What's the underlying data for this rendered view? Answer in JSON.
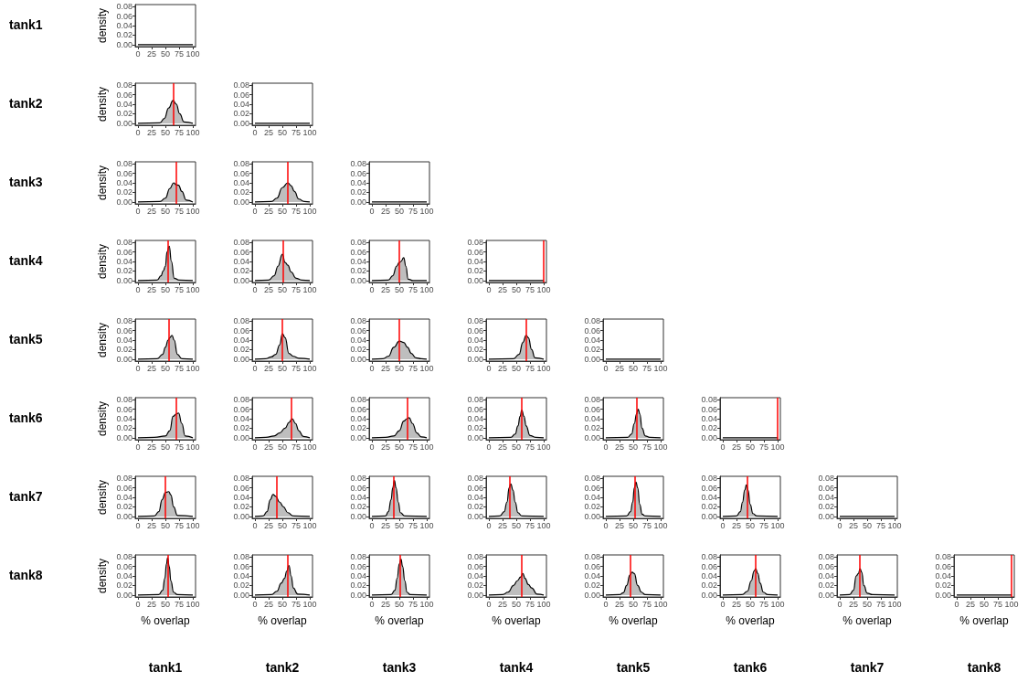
{
  "chart_data": [
    {
      "type": "line",
      "x": [
        0,
        100
      ],
      "values": [
        0,
        0
      ],
      "color": "#000000",
      "xlim": [
        -5,
        105
      ],
      "xticks": [
        0,
        25,
        50,
        75,
        100
      ],
      "ylim": [
        -0.004,
        0.084
      ],
      "yticks": [
        {
          "value": 0,
          "label": "0.00"
        },
        {
          "value": 0.02,
          "label": "0.02"
        },
        {
          "value": 0.04,
          "label": "0.04"
        },
        {
          "value": 0.06,
          "label": "0.06"
        },
        {
          "value": 0.08,
          "label": "0.08"
        }
      ],
      "grid": false,
      "ylabel": "density",
      "title": "tank1"
    },
    {
      "type": "area",
      "x": [
        0,
        40,
        48,
        56,
        64,
        70,
        76,
        84,
        100
      ],
      "values": [
        0,
        0.001,
        0.01,
        0.032,
        0.048,
        0.04,
        0.02,
        0.003,
        0
      ],
      "color": "#bebebe",
      "xlim": [
        -5,
        105
      ],
      "xticks": [
        0,
        25,
        50,
        75,
        100
      ],
      "ylim": [
        -0.004,
        0.084
      ],
      "yticks": [
        {
          "value": 0,
          "label": "0.00"
        },
        {
          "value": 0.02,
          "label": "0.02"
        },
        {
          "value": 0.04,
          "label": "0.04"
        },
        {
          "value": 0.06,
          "label": "0.06"
        },
        {
          "value": 0.08,
          "label": "0.08"
        }
      ],
      "grid": false,
      "ref_lines": [
        {
          "axis": "x",
          "value": 64,
          "color": "#ff0000"
        }
      ],
      "ylabel": "density",
      "title": "tank2"
    },
    {
      "type": "line",
      "x": [
        0,
        100
      ],
      "values": [
        0,
        0
      ],
      "color": "#000000",
      "xlim": [
        -5,
        105
      ],
      "xticks": [
        0,
        25,
        50,
        75,
        100
      ],
      "ylim": [
        -0.004,
        0.084
      ],
      "yticks": [
        {
          "value": 0,
          "label": "0.00"
        },
        {
          "value": 0.02,
          "label": "0.02"
        },
        {
          "value": 0.04,
          "label": "0.04"
        },
        {
          "value": 0.06,
          "label": "0.06"
        },
        {
          "value": 0.08,
          "label": "0.08"
        }
      ],
      "grid": false
    },
    {
      "type": "area",
      "x": [
        0,
        40,
        50,
        58,
        65,
        70,
        74,
        80,
        88,
        100
      ],
      "values": [
        0,
        0.001,
        0.008,
        0.028,
        0.04,
        0.036,
        0.035,
        0.022,
        0.004,
        0
      ],
      "color": "#bebebe",
      "xlim": [
        -5,
        105
      ],
      "xticks": [
        0,
        25,
        50,
        75,
        100
      ],
      "ylim": [
        -0.004,
        0.084
      ],
      "yticks": [
        {
          "value": 0,
          "label": "0.00"
        },
        {
          "value": 0.02,
          "label": "0.02"
        },
        {
          "value": 0.04,
          "label": "0.04"
        },
        {
          "value": 0.06,
          "label": "0.06"
        },
        {
          "value": 0.08,
          "label": "0.08"
        }
      ],
      "grid": false,
      "ref_lines": [
        {
          "axis": "x",
          "value": 70,
          "color": "#ff0000"
        }
      ],
      "ylabel": "density",
      "title": "tank3"
    },
    {
      "type": "area",
      "x": [
        0,
        30,
        40,
        50,
        60,
        66,
        72,
        80,
        90,
        100
      ],
      "values": [
        0,
        0.001,
        0.008,
        0.03,
        0.04,
        0.034,
        0.022,
        0.006,
        0.001,
        0
      ],
      "color": "#bebebe",
      "xlim": [
        -5,
        105
      ],
      "xticks": [
        0,
        25,
        50,
        75,
        100
      ],
      "ylim": [
        -0.004,
        0.084
      ],
      "yticks": [
        {
          "value": 0,
          "label": "0.00"
        },
        {
          "value": 0.02,
          "label": "0.02"
        },
        {
          "value": 0.04,
          "label": "0.04"
        },
        {
          "value": 0.06,
          "label": "0.06"
        },
        {
          "value": 0.08,
          "label": "0.08"
        }
      ],
      "grid": false,
      "ref_lines": [
        {
          "axis": "x",
          "value": 60,
          "color": "#ff0000"
        }
      ]
    },
    {
      "type": "line",
      "x": [
        0,
        100
      ],
      "values": [
        0,
        0
      ],
      "color": "#000000",
      "xlim": [
        -5,
        105
      ],
      "xticks": [
        0,
        25,
        50,
        75,
        100
      ],
      "ylim": [
        -0.004,
        0.084
      ],
      "yticks": [
        {
          "value": 0,
          "label": "0.00"
        },
        {
          "value": 0.02,
          "label": "0.02"
        },
        {
          "value": 0.04,
          "label": "0.04"
        },
        {
          "value": 0.06,
          "label": "0.06"
        },
        {
          "value": 0.08,
          "label": "0.08"
        }
      ],
      "grid": false
    },
    {
      "type": "area",
      "x": [
        0,
        35,
        42,
        46,
        50,
        53,
        57,
        61,
        66,
        75,
        100
      ],
      "values": [
        0,
        0.001,
        0.01,
        0.02,
        0.03,
        0.06,
        0.072,
        0.04,
        0.005,
        0.001,
        0
      ],
      "color": "#bebebe",
      "xlim": [
        -5,
        105
      ],
      "xticks": [
        0,
        25,
        50,
        75,
        100
      ],
      "ylim": [
        -0.004,
        0.084
      ],
      "yticks": [
        {
          "value": 0,
          "label": "0.00"
        },
        {
          "value": 0.02,
          "label": "0.02"
        },
        {
          "value": 0.04,
          "label": "0.04"
        },
        {
          "value": 0.06,
          "label": "0.06"
        },
        {
          "value": 0.08,
          "label": "0.08"
        }
      ],
      "grid": false,
      "ref_lines": [
        {
          "axis": "x",
          "value": 55,
          "color": "#ff0000"
        }
      ],
      "ylabel": "density",
      "title": "tank4"
    },
    {
      "type": "area",
      "x": [
        0,
        25,
        35,
        42,
        50,
        55,
        60,
        66,
        75,
        85,
        100
      ],
      "values": [
        0,
        0.001,
        0.01,
        0.03,
        0.055,
        0.038,
        0.032,
        0.018,
        0.005,
        0.001,
        0
      ],
      "color": "#bebebe",
      "xlim": [
        -5,
        105
      ],
      "xticks": [
        0,
        25,
        50,
        75,
        100
      ],
      "ylim": [
        -0.004,
        0.084
      ],
      "yticks": [
        {
          "value": 0,
          "label": "0.00"
        },
        {
          "value": 0.02,
          "label": "0.02"
        },
        {
          "value": 0.04,
          "label": "0.04"
        },
        {
          "value": 0.06,
          "label": "0.06"
        },
        {
          "value": 0.08,
          "label": "0.08"
        }
      ],
      "grid": false,
      "ref_lines": [
        {
          "axis": "x",
          "value": 52,
          "color": "#ff0000"
        }
      ]
    },
    {
      "type": "area",
      "x": [
        0,
        30,
        38,
        45,
        50,
        53,
        58,
        62,
        66,
        75,
        100
      ],
      "values": [
        0,
        0.001,
        0.01,
        0.03,
        0.038,
        0.04,
        0.048,
        0.03,
        0.003,
        0,
        0
      ],
      "color": "#bebebe",
      "xlim": [
        -5,
        105
      ],
      "xticks": [
        0,
        25,
        50,
        75,
        100
      ],
      "ylim": [
        -0.004,
        0.084
      ],
      "yticks": [
        {
          "value": 0,
          "label": "0.00"
        },
        {
          "value": 0.02,
          "label": "0.02"
        },
        {
          "value": 0.04,
          "label": "0.04"
        },
        {
          "value": 0.06,
          "label": "0.06"
        },
        {
          "value": 0.08,
          "label": "0.08"
        }
      ],
      "grid": false,
      "ref_lines": [
        {
          "axis": "x",
          "value": 50,
          "color": "#ff0000"
        }
      ]
    },
    {
      "type": "line",
      "x": [
        0,
        100
      ],
      "values": [
        0,
        0
      ],
      "color": "#000000",
      "xlim": [
        -5,
        105
      ],
      "xticks": [
        0,
        25,
        50,
        75,
        100
      ],
      "ylim": [
        -0.004,
        0.084
      ],
      "yticks": [
        {
          "value": 0,
          "label": "0.00"
        },
        {
          "value": 0.02,
          "label": "0.02"
        },
        {
          "value": 0.04,
          "label": "0.04"
        },
        {
          "value": 0.06,
          "label": "0.06"
        },
        {
          "value": 0.08,
          "label": "0.08"
        }
      ],
      "grid": false,
      "ref_lines": [
        {
          "axis": "x",
          "value": 99,
          "color": "#ff0000"
        }
      ]
    },
    {
      "type": "area",
      "x": [
        0,
        35,
        45,
        50,
        55,
        58,
        62,
        66,
        72,
        80,
        100
      ],
      "values": [
        0,
        0.001,
        0.01,
        0.025,
        0.04,
        0.045,
        0.05,
        0.04,
        0.01,
        0.001,
        0
      ],
      "color": "#bebebe",
      "xlim": [
        -5,
        105
      ],
      "xticks": [
        0,
        25,
        50,
        75,
        100
      ],
      "ylim": [
        -0.004,
        0.084
      ],
      "yticks": [
        {
          "value": 0,
          "label": "0.00"
        },
        {
          "value": 0.02,
          "label": "0.02"
        },
        {
          "value": 0.04,
          "label": "0.04"
        },
        {
          "value": 0.06,
          "label": "0.06"
        },
        {
          "value": 0.08,
          "label": "0.08"
        }
      ],
      "grid": false,
      "ref_lines": [
        {
          "axis": "x",
          "value": 57,
          "color": "#ff0000"
        }
      ],
      "ylabel": "density",
      "title": "tank5"
    },
    {
      "type": "area",
      "x": [
        0,
        20,
        30,
        38,
        45,
        50,
        55,
        62,
        70,
        80,
        100
      ],
      "values": [
        0,
        0.001,
        0.005,
        0.01,
        0.03,
        0.053,
        0.045,
        0.012,
        0.006,
        0.002,
        0
      ],
      "color": "#bebebe",
      "xlim": [
        -5,
        105
      ],
      "xticks": [
        0,
        25,
        50,
        75,
        100
      ],
      "ylim": [
        -0.004,
        0.084
      ],
      "yticks": [
        {
          "value": 0,
          "label": "0.00"
        },
        {
          "value": 0.02,
          "label": "0.02"
        },
        {
          "value": 0.04,
          "label": "0.04"
        },
        {
          "value": 0.06,
          "label": "0.06"
        },
        {
          "value": 0.08,
          "label": "0.08"
        }
      ],
      "grid": false,
      "ref_lines": [
        {
          "axis": "x",
          "value": 50,
          "color": "#ff0000"
        }
      ]
    },
    {
      "type": "area",
      "x": [
        0,
        20,
        30,
        40,
        50,
        58,
        65,
        72,
        80,
        90,
        100
      ],
      "values": [
        0,
        0.001,
        0.006,
        0.025,
        0.038,
        0.035,
        0.025,
        0.012,
        0.003,
        0.001,
        0
      ],
      "color": "#bebebe",
      "xlim": [
        -5,
        105
      ],
      "xticks": [
        0,
        25,
        50,
        75,
        100
      ],
      "ylim": [
        -0.004,
        0.084
      ],
      "yticks": [
        {
          "value": 0,
          "label": "0.00"
        },
        {
          "value": 0.02,
          "label": "0.02"
        },
        {
          "value": 0.04,
          "label": "0.04"
        },
        {
          "value": 0.06,
          "label": "0.06"
        },
        {
          "value": 0.08,
          "label": "0.08"
        }
      ],
      "grid": false,
      "ref_lines": [
        {
          "axis": "x",
          "value": 50,
          "color": "#ff0000"
        }
      ]
    },
    {
      "type": "area",
      "x": [
        0,
        45,
        55,
        62,
        68,
        72,
        78,
        84,
        100
      ],
      "values": [
        0,
        0.001,
        0.01,
        0.035,
        0.05,
        0.045,
        0.02,
        0.003,
        0
      ],
      "color": "#bebebe",
      "xlim": [
        -5,
        105
      ],
      "xticks": [
        0,
        25,
        50,
        75,
        100
      ],
      "ylim": [
        -0.004,
        0.084
      ],
      "yticks": [
        {
          "value": 0,
          "label": "0.00"
        },
        {
          "value": 0.02,
          "label": "0.02"
        },
        {
          "value": 0.04,
          "label": "0.04"
        },
        {
          "value": 0.06,
          "label": "0.06"
        },
        {
          "value": 0.08,
          "label": "0.08"
        }
      ],
      "grid": false,
      "ref_lines": [
        {
          "axis": "x",
          "value": 68,
          "color": "#ff0000"
        }
      ]
    },
    {
      "type": "line",
      "x": [
        0,
        100
      ],
      "values": [
        0,
        0
      ],
      "color": "#000000",
      "xlim": [
        -5,
        105
      ],
      "xticks": [
        0,
        25,
        50,
        75,
        100
      ],
      "ylim": [
        -0.004,
        0.084
      ],
      "yticks": [
        {
          "value": 0,
          "label": "0.00"
        },
        {
          "value": 0.02,
          "label": "0.02"
        },
        {
          "value": 0.04,
          "label": "0.04"
        },
        {
          "value": 0.06,
          "label": "0.06"
        },
        {
          "value": 0.08,
          "label": "0.08"
        }
      ],
      "grid": false
    },
    {
      "type": "area",
      "x": [
        0,
        30,
        50,
        58,
        64,
        70,
        74,
        80,
        86,
        100
      ],
      "values": [
        0,
        0.001,
        0.004,
        0.015,
        0.045,
        0.05,
        0.052,
        0.03,
        0.004,
        0
      ],
      "color": "#bebebe",
      "xlim": [
        -5,
        105
      ],
      "xticks": [
        0,
        25,
        50,
        75,
        100
      ],
      "ylim": [
        -0.004,
        0.084
      ],
      "yticks": [
        {
          "value": 0,
          "label": "0.00"
        },
        {
          "value": 0.02,
          "label": "0.02"
        },
        {
          "value": 0.04,
          "label": "0.04"
        },
        {
          "value": 0.06,
          "label": "0.06"
        },
        {
          "value": 0.08,
          "label": "0.08"
        }
      ],
      "grid": false,
      "ref_lines": [
        {
          "axis": "x",
          "value": 70,
          "color": "#ff0000"
        }
      ],
      "ylabel": "density",
      "title": "tank6"
    },
    {
      "type": "area",
      "x": [
        0,
        20,
        35,
        45,
        55,
        62,
        68,
        74,
        80,
        88,
        100
      ],
      "values": [
        0,
        0.001,
        0.004,
        0.01,
        0.02,
        0.032,
        0.04,
        0.03,
        0.015,
        0.003,
        0
      ],
      "color": "#bebebe",
      "xlim": [
        -5,
        105
      ],
      "xticks": [
        0,
        25,
        50,
        75,
        100
      ],
      "ylim": [
        -0.004,
        0.084
      ],
      "yticks": [
        {
          "value": 0,
          "label": "0.00"
        },
        {
          "value": 0.02,
          "label": "0.02"
        },
        {
          "value": 0.04,
          "label": "0.04"
        },
        {
          "value": 0.06,
          "label": "0.06"
        },
        {
          "value": 0.08,
          "label": "0.08"
        }
      ],
      "grid": false,
      "ref_lines": [
        {
          "axis": "x",
          "value": 66,
          "color": "#ff0000"
        }
      ]
    },
    {
      "type": "area",
      "x": [
        0,
        25,
        40,
        50,
        58,
        64,
        68,
        74,
        82,
        90,
        100
      ],
      "values": [
        0,
        0.001,
        0.004,
        0.015,
        0.035,
        0.04,
        0.042,
        0.03,
        0.01,
        0.002,
        0
      ],
      "color": "#bebebe",
      "xlim": [
        -5,
        105
      ],
      "xticks": [
        0,
        25,
        50,
        75,
        100
      ],
      "ylim": [
        -0.004,
        0.084
      ],
      "yticks": [
        {
          "value": 0,
          "label": "0.00"
        },
        {
          "value": 0.02,
          "label": "0.02"
        },
        {
          "value": 0.04,
          "label": "0.04"
        },
        {
          "value": 0.06,
          "label": "0.06"
        },
        {
          "value": 0.08,
          "label": "0.08"
        }
      ],
      "grid": false,
      "ref_lines": [
        {
          "axis": "x",
          "value": 64,
          "color": "#ff0000"
        }
      ]
    },
    {
      "type": "area",
      "x": [
        0,
        40,
        48,
        53,
        57,
        60,
        64,
        68,
        75,
        85,
        100
      ],
      "values": [
        0,
        0.001,
        0.008,
        0.025,
        0.045,
        0.058,
        0.045,
        0.025,
        0.005,
        0.001,
        0
      ],
      "color": "#bebebe",
      "xlim": [
        -5,
        105
      ],
      "xticks": [
        0,
        25,
        50,
        75,
        100
      ],
      "ylim": [
        -0.004,
        0.084
      ],
      "yticks": [
        {
          "value": 0,
          "label": "0.00"
        },
        {
          "value": 0.02,
          "label": "0.02"
        },
        {
          "value": 0.04,
          "label": "0.04"
        },
        {
          "value": 0.06,
          "label": "0.06"
        },
        {
          "value": 0.08,
          "label": "0.08"
        }
      ],
      "grid": false,
      "ref_lines": [
        {
          "axis": "x",
          "value": 60,
          "color": "#ff0000"
        }
      ]
    },
    {
      "type": "area",
      "x": [
        0,
        40,
        47,
        52,
        56,
        59,
        62,
        66,
        72,
        80,
        100
      ],
      "values": [
        0,
        0.001,
        0.008,
        0.03,
        0.05,
        0.06,
        0.05,
        0.02,
        0.004,
        0.001,
        0
      ],
      "color": "#bebebe",
      "xlim": [
        -5,
        105
      ],
      "xticks": [
        0,
        25,
        50,
        75,
        100
      ],
      "ylim": [
        -0.004,
        0.084
      ],
      "yticks": [
        {
          "value": 0,
          "label": "0.00"
        },
        {
          "value": 0.02,
          "label": "0.02"
        },
        {
          "value": 0.04,
          "label": "0.04"
        },
        {
          "value": 0.06,
          "label": "0.06"
        },
        {
          "value": 0.08,
          "label": "0.08"
        }
      ],
      "grid": false,
      "ref_lines": [
        {
          "axis": "x",
          "value": 57,
          "color": "#ff0000"
        }
      ]
    },
    {
      "type": "line",
      "x": [
        0,
        100
      ],
      "values": [
        0,
        0
      ],
      "color": "#000000",
      "xlim": [
        -5,
        105
      ],
      "xticks": [
        0,
        25,
        50,
        75,
        100
      ],
      "ylim": [
        -0.004,
        0.084
      ],
      "yticks": [
        {
          "value": 0,
          "label": "0.00"
        },
        {
          "value": 0.02,
          "label": "0.02"
        },
        {
          "value": 0.04,
          "label": "0.04"
        },
        {
          "value": 0.06,
          "label": "0.06"
        },
        {
          "value": 0.08,
          "label": "0.08"
        }
      ],
      "grid": false,
      "ref_lines": [
        {
          "axis": "x",
          "value": 99,
          "color": "#ff0000"
        }
      ]
    },
    {
      "type": "area",
      "x": [
        0,
        30,
        38,
        44,
        50,
        56,
        60,
        65,
        72,
        100
      ],
      "values": [
        0,
        0.001,
        0.01,
        0.035,
        0.05,
        0.052,
        0.045,
        0.02,
        0.002,
        0
      ],
      "color": "#bebebe",
      "xlim": [
        -5,
        105
      ],
      "xticks": [
        0,
        25,
        50,
        75,
        100
      ],
      "ylim": [
        -0.004,
        0.084
      ],
      "yticks": [
        {
          "value": 0,
          "label": "0.00"
        },
        {
          "value": 0.02,
          "label": "0.02"
        },
        {
          "value": 0.04,
          "label": "0.04"
        },
        {
          "value": 0.06,
          "label": "0.06"
        },
        {
          "value": 0.08,
          "label": "0.08"
        }
      ],
      "grid": false,
      "ref_lines": [
        {
          "axis": "x",
          "value": 50,
          "color": "#ff0000"
        }
      ],
      "ylabel": "density",
      "title": "tank7"
    },
    {
      "type": "area",
      "x": [
        0,
        15,
        22,
        28,
        33,
        38,
        45,
        52,
        60,
        70,
        100
      ],
      "values": [
        0,
        0.001,
        0.01,
        0.035,
        0.046,
        0.042,
        0.03,
        0.02,
        0.008,
        0.001,
        0
      ],
      "color": "#bebebe",
      "xlim": [
        -5,
        105
      ],
      "xticks": [
        0,
        25,
        50,
        75,
        100
      ],
      "ylim": [
        -0.004,
        0.084
      ],
      "yticks": [
        {
          "value": 0,
          "label": "0.00"
        },
        {
          "value": 0.02,
          "label": "0.02"
        },
        {
          "value": 0.04,
          "label": "0.04"
        },
        {
          "value": 0.06,
          "label": "0.06"
        },
        {
          "value": 0.08,
          "label": "0.08"
        }
      ],
      "grid": false,
      "ref_lines": [
        {
          "axis": "x",
          "value": 40,
          "color": "#ff0000"
        }
      ]
    },
    {
      "type": "area",
      "x": [
        0,
        25,
        30,
        35,
        38,
        41,
        44,
        48,
        52,
        60,
        100
      ],
      "values": [
        0,
        0.001,
        0.01,
        0.035,
        0.06,
        0.075,
        0.06,
        0.03,
        0.008,
        0.001,
        0
      ],
      "color": "#bebebe",
      "xlim": [
        -5,
        105
      ],
      "xticks": [
        0,
        25,
        50,
        75,
        100
      ],
      "ylim": [
        -0.004,
        0.084
      ],
      "yticks": [
        {
          "value": 0,
          "label": "0.00"
        },
        {
          "value": 0.02,
          "label": "0.02"
        },
        {
          "value": 0.04,
          "label": "0.04"
        },
        {
          "value": 0.06,
          "label": "0.06"
        },
        {
          "value": 0.08,
          "label": "0.08"
        }
      ],
      "grid": false,
      "ref_lines": [
        {
          "axis": "x",
          "value": 40,
          "color": "#ff0000"
        }
      ]
    },
    {
      "type": "area",
      "x": [
        0,
        20,
        28,
        33,
        37,
        40,
        44,
        48,
        53,
        60,
        100
      ],
      "values": [
        0,
        0.001,
        0.01,
        0.03,
        0.06,
        0.068,
        0.055,
        0.03,
        0.008,
        0.001,
        0
      ],
      "color": "#bebebe",
      "xlim": [
        -5,
        105
      ],
      "xticks": [
        0,
        25,
        50,
        75,
        100
      ],
      "ylim": [
        -0.004,
        0.084
      ],
      "yticks": [
        {
          "value": 0,
          "label": "0.00"
        },
        {
          "value": 0.02,
          "label": "0.02"
        },
        {
          "value": 0.04,
          "label": "0.04"
        },
        {
          "value": 0.06,
          "label": "0.06"
        },
        {
          "value": 0.08,
          "label": "0.08"
        }
      ],
      "grid": false,
      "ref_lines": [
        {
          "axis": "x",
          "value": 38,
          "color": "#ff0000"
        }
      ]
    },
    {
      "type": "area",
      "x": [
        0,
        38,
        45,
        49,
        52,
        55,
        58,
        62,
        66,
        72,
        100
      ],
      "values": [
        0,
        0.001,
        0.01,
        0.03,
        0.06,
        0.072,
        0.06,
        0.025,
        0.005,
        0.001,
        0
      ],
      "color": "#bebebe",
      "xlim": [
        -5,
        105
      ],
      "xticks": [
        0,
        25,
        50,
        75,
        100
      ],
      "ylim": [
        -0.004,
        0.084
      ],
      "yticks": [
        {
          "value": 0,
          "label": "0.00"
        },
        {
          "value": 0.02,
          "label": "0.02"
        },
        {
          "value": 0.04,
          "label": "0.04"
        },
        {
          "value": 0.06,
          "label": "0.06"
        },
        {
          "value": 0.08,
          "label": "0.08"
        }
      ],
      "grid": false,
      "ref_lines": [
        {
          "axis": "x",
          "value": 53,
          "color": "#ff0000"
        }
      ]
    },
    {
      "type": "area",
      "x": [
        0,
        25,
        32,
        36,
        40,
        43,
        46,
        50,
        55,
        62,
        100
      ],
      "values": [
        0,
        0.001,
        0.01,
        0.03,
        0.055,
        0.066,
        0.055,
        0.025,
        0.006,
        0.001,
        0
      ],
      "color": "#bebebe",
      "xlim": [
        -5,
        105
      ],
      "xticks": [
        0,
        25,
        50,
        75,
        100
      ],
      "ylim": [
        -0.004,
        0.084
      ],
      "yticks": [
        {
          "value": 0,
          "label": "0.00"
        },
        {
          "value": 0.02,
          "label": "0.02"
        },
        {
          "value": 0.04,
          "label": "0.04"
        },
        {
          "value": 0.06,
          "label": "0.06"
        },
        {
          "value": 0.08,
          "label": "0.08"
        }
      ],
      "grid": false,
      "ref_lines": [
        {
          "axis": "x",
          "value": 45,
          "color": "#ff0000"
        }
      ]
    },
    {
      "type": "line",
      "x": [
        0,
        100
      ],
      "values": [
        0,
        0
      ],
      "color": "#000000",
      "xlim": [
        -5,
        105
      ],
      "xticks": [
        0,
        25,
        50,
        75,
        100
      ],
      "ylim": [
        -0.004,
        0.084
      ],
      "yticks": [
        {
          "value": 0,
          "label": "0.00"
        },
        {
          "value": 0.02,
          "label": "0.02"
        },
        {
          "value": 0.04,
          "label": "0.04"
        },
        {
          "value": 0.06,
          "label": "0.06"
        },
        {
          "value": 0.08,
          "label": "0.08"
        }
      ],
      "grid": false
    },
    {
      "type": "area",
      "x": [
        0,
        38,
        45,
        49,
        52,
        54,
        57,
        60,
        65,
        72,
        100
      ],
      "values": [
        0,
        0.001,
        0.01,
        0.035,
        0.065,
        0.078,
        0.06,
        0.03,
        0.006,
        0.001,
        0
      ],
      "color": "#bebebe",
      "xlim": [
        -5,
        105
      ],
      "xticks": [
        0,
        25,
        50,
        75,
        100
      ],
      "ylim": [
        -0.004,
        0.084
      ],
      "yticks": [
        {
          "value": 0,
          "label": "0.00"
        },
        {
          "value": 0.02,
          "label": "0.02"
        },
        {
          "value": 0.04,
          "label": "0.04"
        },
        {
          "value": 0.06,
          "label": "0.06"
        },
        {
          "value": 0.08,
          "label": "0.08"
        }
      ],
      "grid": false,
      "ref_lines": [
        {
          "axis": "x",
          "value": 54,
          "color": "#ff0000"
        }
      ],
      "ylabel": "density",
      "xlabel": "% overlap",
      "title": "tank8",
      "annotations": [
        "tank1"
      ]
    },
    {
      "type": "area",
      "x": [
        0,
        30,
        40,
        48,
        54,
        58,
        62,
        66,
        70,
        78,
        100
      ],
      "values": [
        0,
        0.001,
        0.008,
        0.025,
        0.035,
        0.05,
        0.062,
        0.04,
        0.015,
        0.002,
        0
      ],
      "color": "#bebebe",
      "xlim": [
        -5,
        105
      ],
      "xticks": [
        0,
        25,
        50,
        75,
        100
      ],
      "ylim": [
        -0.004,
        0.084
      ],
      "yticks": [
        {
          "value": 0,
          "label": "0.00"
        },
        {
          "value": 0.02,
          "label": "0.02"
        },
        {
          "value": 0.04,
          "label": "0.04"
        },
        {
          "value": 0.06,
          "label": "0.06"
        },
        {
          "value": 0.08,
          "label": "0.08"
        }
      ],
      "grid": false,
      "ref_lines": [
        {
          "axis": "x",
          "value": 60,
          "color": "#ff0000"
        }
      ],
      "xlabel": "% overlap",
      "annotations": [
        "tank2"
      ]
    },
    {
      "type": "area",
      "x": [
        0,
        35,
        42,
        46,
        50,
        53,
        56,
        60,
        64,
        70,
        100
      ],
      "values": [
        0,
        0.001,
        0.01,
        0.035,
        0.065,
        0.075,
        0.06,
        0.03,
        0.006,
        0.001,
        0
      ],
      "color": "#bebebe",
      "xlim": [
        -5,
        105
      ],
      "xticks": [
        0,
        25,
        50,
        75,
        100
      ],
      "ylim": [
        -0.004,
        0.084
      ],
      "yticks": [
        {
          "value": 0,
          "label": "0.00"
        },
        {
          "value": 0.02,
          "label": "0.02"
        },
        {
          "value": 0.04,
          "label": "0.04"
        },
        {
          "value": 0.06,
          "label": "0.06"
        },
        {
          "value": 0.08,
          "label": "0.08"
        }
      ],
      "grid": false,
      "ref_lines": [
        {
          "axis": "x",
          "value": 52,
          "color": "#ff0000"
        }
      ],
      "xlabel": "% overlap",
      "annotations": [
        "tank3"
      ]
    },
    {
      "type": "area",
      "x": [
        0,
        25,
        35,
        45,
        52,
        58,
        62,
        66,
        72,
        78,
        88,
        100
      ],
      "values": [
        0,
        0.001,
        0.006,
        0.02,
        0.03,
        0.038,
        0.045,
        0.035,
        0.022,
        0.015,
        0.002,
        0
      ],
      "color": "#bebebe",
      "xlim": [
        -5,
        105
      ],
      "xticks": [
        0,
        25,
        50,
        75,
        100
      ],
      "ylim": [
        -0.004,
        0.084
      ],
      "yticks": [
        {
          "value": 0,
          "label": "0.00"
        },
        {
          "value": 0.02,
          "label": "0.02"
        },
        {
          "value": 0.04,
          "label": "0.04"
        },
        {
          "value": 0.06,
          "label": "0.06"
        },
        {
          "value": 0.08,
          "label": "0.08"
        }
      ],
      "grid": false,
      "ref_lines": [
        {
          "axis": "x",
          "value": 60,
          "color": "#ff0000"
        }
      ],
      "xlabel": "% overlap",
      "annotations": [
        "tank4"
      ]
    },
    {
      "type": "area",
      "x": [
        0,
        25,
        32,
        38,
        44,
        48,
        52,
        58,
        65,
        72,
        100
      ],
      "values": [
        0,
        0.001,
        0.005,
        0.02,
        0.042,
        0.048,
        0.045,
        0.02,
        0.006,
        0.001,
        0
      ],
      "color": "#bebebe",
      "xlim": [
        -5,
        105
      ],
      "xticks": [
        0,
        25,
        50,
        75,
        100
      ],
      "ylim": [
        -0.004,
        0.084
      ],
      "yticks": [
        {
          "value": 0,
          "label": "0.00"
        },
        {
          "value": 0.02,
          "label": "0.02"
        },
        {
          "value": 0.04,
          "label": "0.04"
        },
        {
          "value": 0.06,
          "label": "0.06"
        },
        {
          "value": 0.08,
          "label": "0.08"
        }
      ],
      "grid": false,
      "ref_lines": [
        {
          "axis": "x",
          "value": 45,
          "color": "#ff0000"
        }
      ],
      "xlabel": "% overlap",
      "annotations": [
        "tank5"
      ]
    },
    {
      "type": "area",
      "x": [
        0,
        35,
        45,
        52,
        57,
        60,
        64,
        68,
        74,
        82,
        100
      ],
      "values": [
        0,
        0.001,
        0.008,
        0.03,
        0.05,
        0.055,
        0.045,
        0.025,
        0.006,
        0.001,
        0
      ],
      "color": "#bebebe",
      "xlim": [
        -5,
        105
      ],
      "xticks": [
        0,
        25,
        50,
        75,
        100
      ],
      "ylim": [
        -0.004,
        0.084
      ],
      "yticks": [
        {
          "value": 0,
          "label": "0.00"
        },
        {
          "value": 0.02,
          "label": "0.02"
        },
        {
          "value": 0.04,
          "label": "0.04"
        },
        {
          "value": 0.06,
          "label": "0.06"
        },
        {
          "value": 0.08,
          "label": "0.08"
        }
      ],
      "grid": false,
      "ref_lines": [
        {
          "axis": "x",
          "value": 60,
          "color": "#ff0000"
        }
      ],
      "xlabel": "% overlap",
      "annotations": [
        "tank6"
      ]
    },
    {
      "type": "area",
      "x": [
        0,
        18,
        25,
        30,
        34,
        37,
        40,
        44,
        50,
        60,
        100
      ],
      "values": [
        0,
        0.001,
        0.01,
        0.04,
        0.045,
        0.055,
        0.048,
        0.02,
        0.004,
        0.001,
        0
      ],
      "color": "#bebebe",
      "xlim": [
        -5,
        105
      ],
      "xticks": [
        0,
        25,
        50,
        75,
        100
      ],
      "ylim": [
        -0.004,
        0.084
      ],
      "yticks": [
        {
          "value": 0,
          "label": "0.00"
        },
        {
          "value": 0.02,
          "label": "0.02"
        },
        {
          "value": 0.04,
          "label": "0.04"
        },
        {
          "value": 0.06,
          "label": "0.06"
        },
        {
          "value": 0.08,
          "label": "0.08"
        }
      ],
      "grid": false,
      "ref_lines": [
        {
          "axis": "x",
          "value": 37,
          "color": "#ff0000"
        }
      ],
      "xlabel": "% overlap",
      "annotations": [
        "tank7"
      ]
    },
    {
      "type": "line",
      "x": [
        0,
        100
      ],
      "values": [
        0,
        0
      ],
      "color": "#000000",
      "xlim": [
        -5,
        105
      ],
      "xticks": [
        0,
        25,
        50,
        75,
        100
      ],
      "ylim": [
        -0.004,
        0.084
      ],
      "yticks": [
        {
          "value": 0,
          "label": "0.00"
        },
        {
          "value": 0.02,
          "label": "0.02"
        },
        {
          "value": 0.04,
          "label": "0.04"
        },
        {
          "value": 0.06,
          "label": "0.06"
        },
        {
          "value": 0.08,
          "label": "0.08"
        }
      ],
      "grid": false,
      "ref_lines": [
        {
          "axis": "x",
          "value": 99,
          "color": "#ff0000"
        }
      ],
      "xlabel": "% overlap",
      "annotations": [
        "tank8"
      ]
    }
  ]
}
